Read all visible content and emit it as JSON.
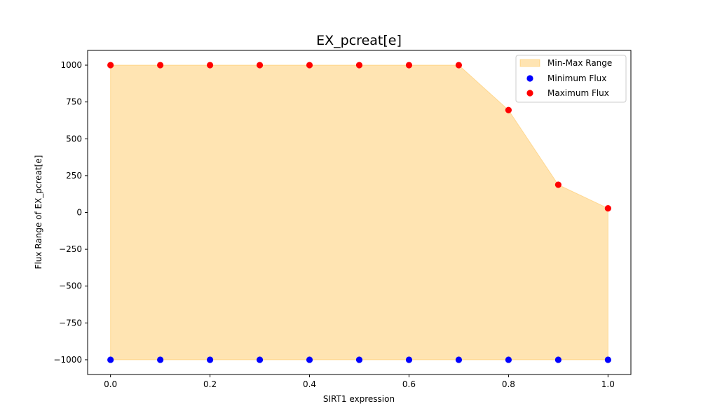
{
  "chart_data": {
    "type": "area",
    "title": "EX_pcreat[e]",
    "xlabel": "SIRT1 expression",
    "ylabel": "Flux Range of EX_pcreat[e]",
    "x": [
      0.0,
      0.1,
      0.2,
      0.3,
      0.4,
      0.5,
      0.6,
      0.7,
      0.8,
      0.9,
      1.0
    ],
    "xlim": [
      -0.046,
      1.046
    ],
    "ylim": [
      -1100,
      1100
    ],
    "xticks": [
      0.0,
      0.2,
      0.4,
      0.6,
      0.8,
      1.0
    ],
    "xtick_labels": [
      "0.0",
      "0.2",
      "0.4",
      "0.6",
      "0.8",
      "1.0"
    ],
    "yticks": [
      -1000,
      -750,
      -500,
      -250,
      0,
      250,
      500,
      750,
      1000
    ],
    "ytick_labels": [
      "−1000",
      "−750",
      "−500",
      "−250",
      "0",
      "250",
      "500",
      "750",
      "1000"
    ],
    "grid": false,
    "legend_position": "top-right",
    "range": {
      "name": "Min-Max Range",
      "color": "#ffa500",
      "opacity": 0.3
    },
    "series": [
      {
        "name": "Minimum Flux",
        "kind": "scatter",
        "color": "#0000ff",
        "values": [
          -1000,
          -1000,
          -1000,
          -1000,
          -1000,
          -1000,
          -1000,
          -1000,
          -1000,
          -1000,
          -1000
        ]
      },
      {
        "name": "Maximum Flux",
        "kind": "scatter",
        "color": "#ff0000",
        "values": [
          1000,
          1000,
          1000,
          1000,
          1000,
          1000,
          1000,
          1000,
          695,
          188,
          28
        ]
      }
    ]
  }
}
